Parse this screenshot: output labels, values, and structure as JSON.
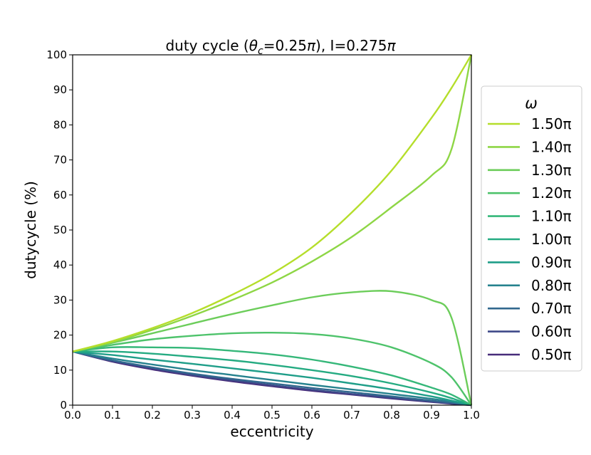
{
  "chart_data": {
    "type": "line",
    "title": "duty cycle (θ_c=0.25π), I=0.275π",
    "title_parts": {
      "prefix": "duty cycle (",
      "theta": "θ",
      "theta_sub": "c",
      "mid": "=0.25",
      "pi1": "π",
      "suffix": "), I=0.275",
      "pi2": "π"
    },
    "xlabel": "eccentricity",
    "ylabel": "dutycycle (%)",
    "xlim": [
      0,
      1
    ],
    "ylim": [
      0,
      100
    ],
    "xticks": [
      "0.0",
      "0.1",
      "0.2",
      "0.3",
      "0.4",
      "0.5",
      "0.6",
      "0.7",
      "0.8",
      "0.9",
      "1.0"
    ],
    "yticks": [
      "0",
      "10",
      "20",
      "30",
      "40",
      "50",
      "60",
      "70",
      "80",
      "90",
      "100"
    ],
    "grid": false,
    "legend": {
      "title": "ω",
      "placement": "right, outside"
    },
    "x": [
      0.0,
      0.1,
      0.2,
      0.3,
      0.4,
      0.5,
      0.6,
      0.7,
      0.8,
      0.9,
      0.95,
      1.0
    ],
    "series": [
      {
        "name": "1.50π",
        "color": "#b5de2b",
        "values": [
          15.3,
          18.3,
          22.0,
          26.3,
          31.5,
          37.5,
          45.0,
          55.0,
          67.0,
          82.0,
          90.5,
          100.0
        ]
      },
      {
        "name": "1.40π",
        "color": "#8ed645",
        "values": [
          15.3,
          18.0,
          21.5,
          25.5,
          30.0,
          35.0,
          41.0,
          48.0,
          56.5,
          65.5,
          73.0,
          100.0
        ]
      },
      {
        "name": "1.30π",
        "color": "#6ccd5a",
        "values": [
          15.3,
          17.8,
          20.5,
          23.3,
          26.0,
          28.5,
          30.8,
          32.2,
          32.5,
          30.0,
          25.0,
          0.0
        ]
      },
      {
        "name": "1.20π",
        "color": "#4ec36b",
        "values": [
          15.3,
          17.2,
          18.8,
          19.8,
          20.5,
          20.7,
          20.3,
          19.0,
          16.5,
          12.0,
          8.0,
          0.0
        ]
      },
      {
        "name": "1.10π",
        "color": "#35b779",
        "values": [
          15.3,
          16.5,
          16.5,
          16.3,
          15.5,
          14.5,
          13.0,
          11.0,
          8.5,
          5.0,
          3.0,
          0.0
        ]
      },
      {
        "name": "1.00π",
        "color": "#25ab82",
        "values": [
          15.3,
          15.3,
          14.7,
          13.8,
          12.8,
          11.5,
          10.0,
          8.3,
          6.2,
          3.6,
          2.0,
          0.0
        ]
      },
      {
        "name": "0.90π",
        "color": "#1f9e89",
        "values": [
          15.3,
          14.3,
          13.0,
          11.8,
          10.5,
          9.2,
          7.8,
          6.2,
          4.5,
          2.5,
          1.3,
          0.0
        ]
      },
      {
        "name": "0.80π",
        "color": "#26828e",
        "values": [
          15.3,
          13.3,
          11.6,
          10.0,
          8.6,
          7.2,
          5.8,
          4.5,
          3.2,
          1.8,
          1.0,
          0.0
        ]
      },
      {
        "name": "0.70π",
        "color": "#31688e",
        "values": [
          15.3,
          12.8,
          10.8,
          9.0,
          7.5,
          6.2,
          4.9,
          3.7,
          2.5,
          1.3,
          0.7,
          0.0
        ]
      },
      {
        "name": "0.60π",
        "color": "#3e4989",
        "values": [
          15.3,
          12.6,
          10.5,
          8.6,
          7.1,
          5.7,
          4.4,
          3.2,
          2.1,
          1.0,
          0.5,
          0.0
        ]
      },
      {
        "name": "0.50π",
        "color": "#472c7a",
        "values": [
          15.3,
          12.4,
          10.2,
          8.4,
          6.8,
          5.4,
          4.1,
          3.0,
          1.9,
          0.9,
          0.4,
          0.0
        ]
      }
    ]
  }
}
